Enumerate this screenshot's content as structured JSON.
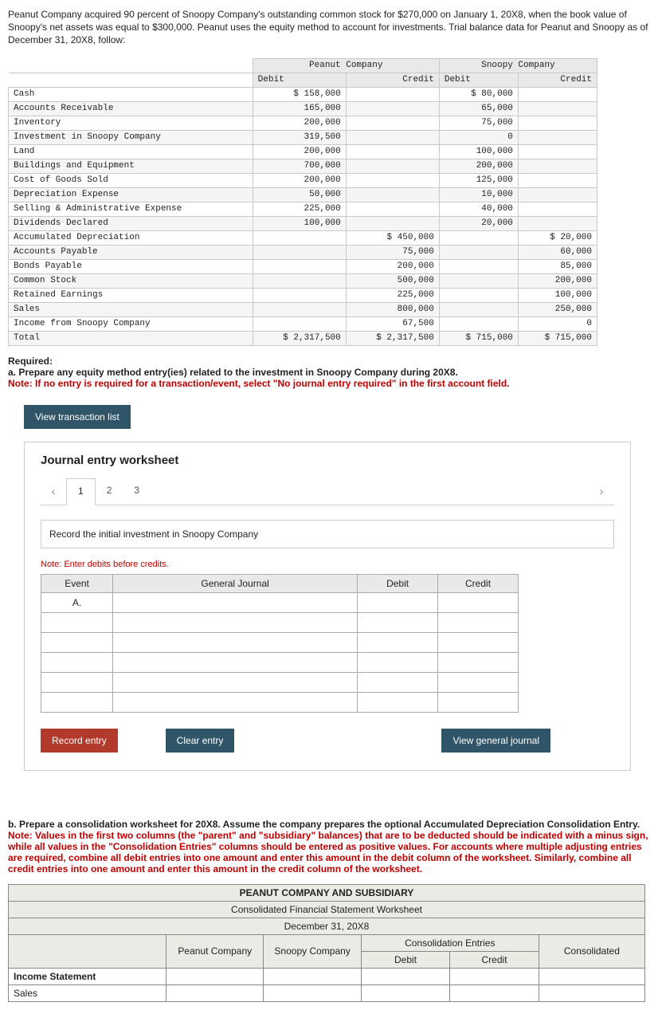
{
  "intro": "Peanut Company acquired 90 percent of Snoopy Company's outstanding common stock for $270,000 on January 1, 20X8, when the book value of Snoopy's net assets was equal to $300,000. Peanut uses the equity method to account for investments. Trial balance data for Peanut and Snoopy as of December 31, 20X8, follow:",
  "tb": {
    "co1": "Peanut Company",
    "co2": "Snoopy Company",
    "debit": "Debit",
    "credit": "Credit",
    "rows": [
      {
        "l": "Cash",
        "d1": "$ 158,000",
        "c1": "",
        "d2": "$ 80,000",
        "c2": ""
      },
      {
        "l": "Accounts Receivable",
        "d1": "165,000",
        "c1": "",
        "d2": "65,000",
        "c2": ""
      },
      {
        "l": "Inventory",
        "d1": "200,000",
        "c1": "",
        "d2": "75,000",
        "c2": ""
      },
      {
        "l": "Investment in Snoopy Company",
        "d1": "319,500",
        "c1": "",
        "d2": "0",
        "c2": ""
      },
      {
        "l": "Land",
        "d1": "200,000",
        "c1": "",
        "d2": "100,000",
        "c2": ""
      },
      {
        "l": "Buildings and Equipment",
        "d1": "700,000",
        "c1": "",
        "d2": "200,000",
        "c2": ""
      },
      {
        "l": "Cost of Goods Sold",
        "d1": "200,000",
        "c1": "",
        "d2": "125,000",
        "c2": ""
      },
      {
        "l": "Depreciation Expense",
        "d1": "50,000",
        "c1": "",
        "d2": "10,000",
        "c2": ""
      },
      {
        "l": "Selling & Administrative Expense",
        "d1": "225,000",
        "c1": "",
        "d2": "40,000",
        "c2": ""
      },
      {
        "l": "Dividends Declared",
        "d1": "100,000",
        "c1": "",
        "d2": "20,000",
        "c2": ""
      },
      {
        "l": "Accumulated Depreciation",
        "d1": "",
        "c1": "$ 450,000",
        "d2": "",
        "c2": "$ 20,000"
      },
      {
        "l": "Accounts Payable",
        "d1": "",
        "c1": "75,000",
        "d2": "",
        "c2": "60,000"
      },
      {
        "l": "Bonds Payable",
        "d1": "",
        "c1": "200,000",
        "d2": "",
        "c2": "85,000"
      },
      {
        "l": "Common Stock",
        "d1": "",
        "c1": "500,000",
        "d2": "",
        "c2": "200,000"
      },
      {
        "l": "Retained Earnings",
        "d1": "",
        "c1": "225,000",
        "d2": "",
        "c2": "100,000"
      },
      {
        "l": "Sales",
        "d1": "",
        "c1": "800,000",
        "d2": "",
        "c2": "250,000"
      },
      {
        "l": "Income from Snoopy Company",
        "d1": "",
        "c1": "67,500",
        "d2": "",
        "c2": "0"
      }
    ],
    "total_l": "Total",
    "total": {
      "d1": "$ 2,317,500",
      "c1": "$ 2,317,500",
      "d2": "$ 715,000",
      "c2": "$ 715,000"
    }
  },
  "req": {
    "h": "Required:",
    "a": "a. Prepare any equity method entry(ies) related to the investment in Snoopy Company during 20X8.",
    "note": "Note: If no entry is required for a transaction/event, select \"No journal entry required\" in the first account field."
  },
  "view_list": "View transaction list",
  "ws": {
    "title": "Journal entry worksheet",
    "tabs": [
      "1",
      "2",
      "3"
    ],
    "instr": "Record the initial investment in Snoopy Company",
    "note": "Note: Enter debits before credits.",
    "cols": {
      "event": "Event",
      "gj": "General Journal",
      "debit": "Debit",
      "credit": "Credit"
    },
    "evA": "A.",
    "record": "Record entry",
    "clear": "Clear entry",
    "view": "View general journal"
  },
  "b": {
    "text": "b. Prepare a consolidation worksheet for 20X8. Assume the company prepares the optional Accumulated Depreciation Consolidation Entry.",
    "note": "Note: Values in the first two columns (the \"parent\" and \"subsidiary\" balances) that are to be deducted should be indicated with a minus sign, while all values in the \"Consolidation Entries\" columns should be entered as positive values. For accounts where multiple adjusting entries are required, combine all debit entries into one amount and enter this amount in the debit column of the worksheet. Similarly, combine all credit entries into one amount and enter this amount in the credit column of the worksheet."
  },
  "cons": {
    "t1": "PEANUT COMPANY AND SUBSIDIARY",
    "t2": "Consolidated Financial Statement Worksheet",
    "t3": "December 31, 20X8",
    "peanut": "Peanut Company",
    "snoopy": "Snoopy Company",
    "ce": "Consolidation Entries",
    "debit": "Debit",
    "credit": "Credit",
    "consol": "Consolidated",
    "is": "Income Statement",
    "sales": "Sales"
  }
}
